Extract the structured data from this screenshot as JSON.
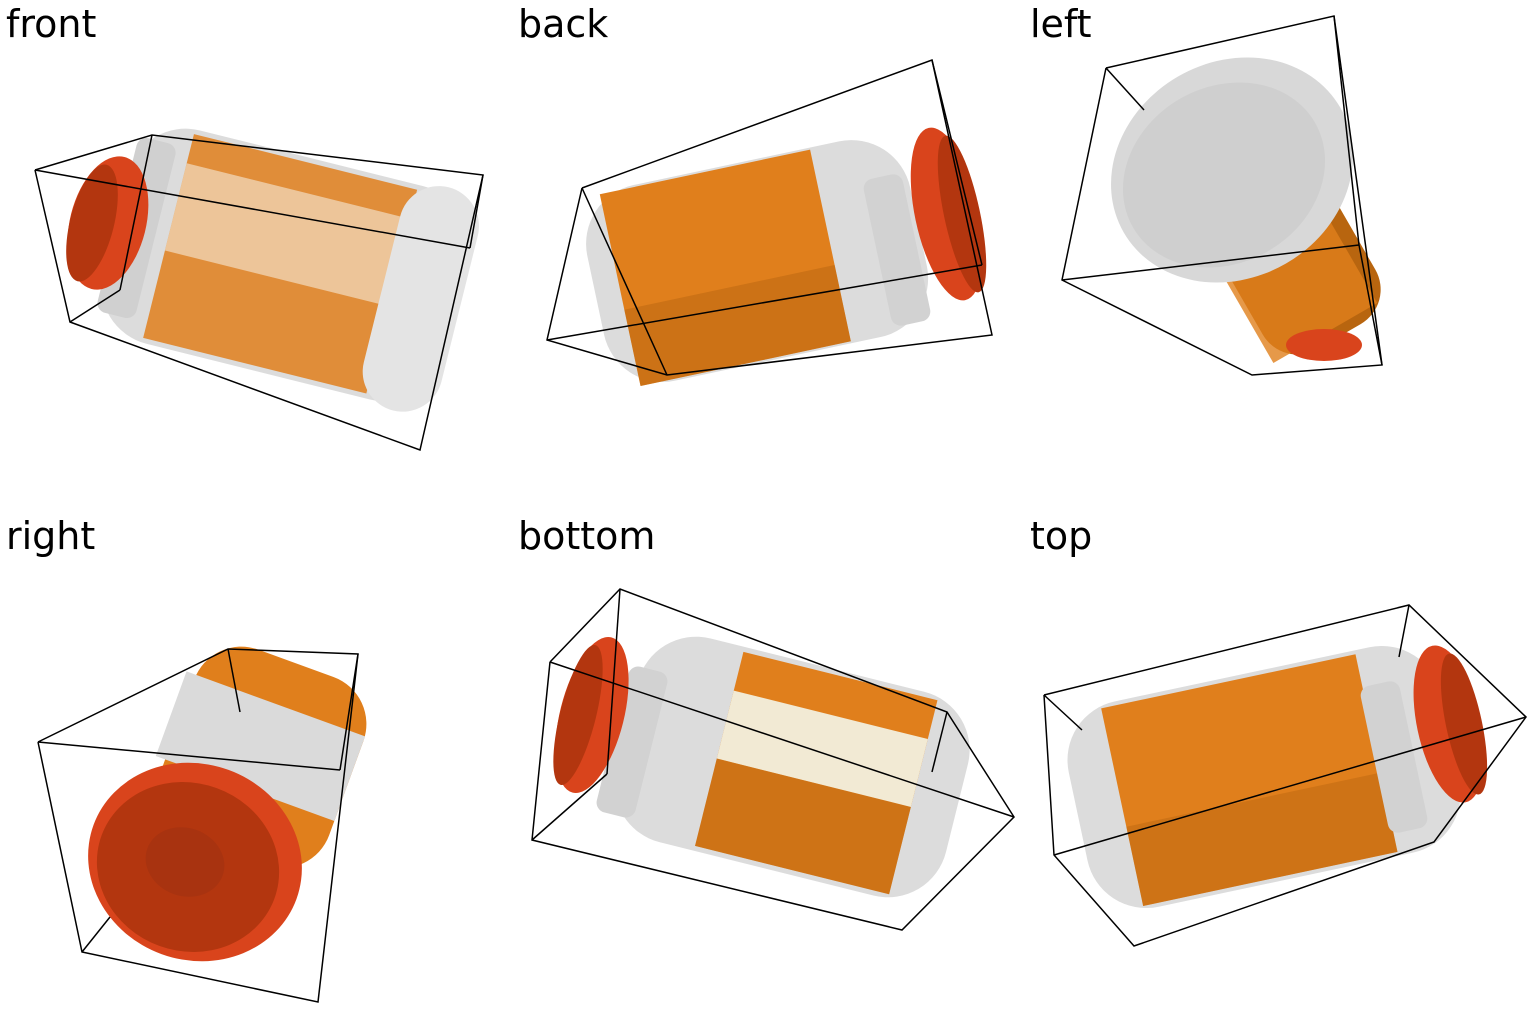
{
  "views": [
    {
      "label": "front"
    },
    {
      "label": "back"
    },
    {
      "label": "left"
    },
    {
      "label": "right"
    },
    {
      "label": "bottom"
    },
    {
      "label": "top"
    }
  ],
  "colors": {
    "background": "#ffffff",
    "cap": "#d9441c",
    "cap_dark": "#b3360f",
    "bottle_body": "#dcdcdc",
    "bottle_shadow": "#bdbdbd",
    "label_orange": "#e07f1c",
    "label_dark": "#b8650f",
    "label_light": "#f2ddc2",
    "box_line": "#000000"
  }
}
